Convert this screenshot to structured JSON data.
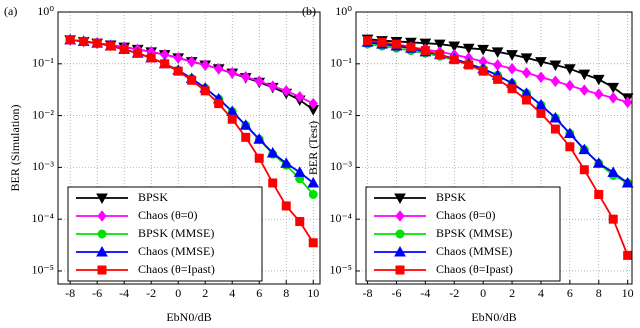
{
  "chart_data": [
    {
      "type": "line",
      "panel_label": "(a)",
      "xlabel": "EbN0/dB",
      "ylabel": "BER (Simulation)",
      "yscale": "log",
      "grid": true,
      "legend": "lower left",
      "x": [
        -8,
        -7,
        -6,
        -5,
        -4,
        -3,
        -2,
        -1,
        0,
        1,
        2,
        3,
        4,
        5,
        6,
        7,
        8,
        9,
        10
      ],
      "xlim": [
        -8.9,
        10.5
      ],
      "xticks": [
        -8,
        -6,
        -4,
        -2,
        0,
        2,
        4,
        6,
        8,
        10
      ],
      "ylim": [
        5.6e-06,
        1
      ],
      "yticks": [
        {
          "value": 1e-05,
          "label": "10⁻⁵"
        },
        {
          "value": 0.0001,
          "label": "10⁻⁴"
        },
        {
          "value": 0.001,
          "label": "10⁻³"
        },
        {
          "value": 0.01,
          "label": "10⁻²"
        },
        {
          "value": 0.1,
          "label": "10⁻¹"
        },
        {
          "value": 1,
          "label": "10⁰"
        }
      ],
      "series": [
        {
          "name": "BPSK",
          "color": "#000000",
          "marker": "triangle-down",
          "values": [
            0.29,
            0.27,
            0.25,
            0.23,
            0.21,
            0.19,
            0.17,
            0.15,
            0.13,
            0.11,
            0.095,
            0.08,
            0.066,
            0.054,
            0.044,
            0.035,
            0.027,
            0.02,
            0.013
          ]
        },
        {
          "name": "Chaos (θ=0)",
          "color": "#ff00ff",
          "marker": "diamond",
          "values": [
            0.29,
            0.27,
            0.25,
            0.23,
            0.21,
            0.19,
            0.17,
            0.15,
            0.13,
            0.11,
            0.095,
            0.08,
            0.067,
            0.056,
            0.046,
            0.037,
            0.03,
            0.023,
            0.017
          ]
        },
        {
          "name": "BPSK (MMSE)",
          "color": "#00e000",
          "marker": "circle",
          "values": [
            0.29,
            0.27,
            0.25,
            0.22,
            0.19,
            0.16,
            0.13,
            0.1,
            0.075,
            0.052,
            0.034,
            0.021,
            0.012,
            0.0065,
            0.0035,
            0.0018,
            0.0011,
            0.0006,
            0.0003
          ]
        },
        {
          "name": "Chaos (MMSE)",
          "color": "#0000ff",
          "marker": "triangle-up",
          "values": [
            0.29,
            0.27,
            0.25,
            0.22,
            0.19,
            0.16,
            0.13,
            0.1,
            0.075,
            0.052,
            0.034,
            0.021,
            0.012,
            0.0065,
            0.0035,
            0.0019,
            0.0012,
            0.0008,
            0.0005
          ]
        },
        {
          "name": "Chaos (θ=Ipast)",
          "color": "#ff0000",
          "marker": "square",
          "values": [
            0.29,
            0.27,
            0.25,
            0.22,
            0.19,
            0.16,
            0.13,
            0.1,
            0.072,
            0.048,
            0.03,
            0.017,
            0.0085,
            0.0038,
            0.0015,
            0.0005,
            0.00018,
            9e-05,
            3.5e-05
          ]
        }
      ]
    },
    {
      "type": "line",
      "panel_label": "(b)",
      "xlabel": "EbN0/dB",
      "ylabel": "BER (Test)",
      "yscale": "log",
      "grid": true,
      "legend": "lower left",
      "x": [
        -8,
        -7,
        -6,
        -5,
        -4,
        -3,
        -2,
        -1,
        0,
        1,
        2,
        3,
        4,
        5,
        6,
        7,
        8,
        9,
        10
      ],
      "xlim": [
        -8.8,
        10.3
      ],
      "xticks": [
        -8,
        -6,
        -4,
        -2,
        0,
        2,
        4,
        6,
        8,
        10
      ],
      "ylim": [
        5.6e-06,
        1
      ],
      "yticks": [
        {
          "value": 1e-05,
          "label": "10⁻⁵"
        },
        {
          "value": 0.0001,
          "label": "10⁻⁴"
        },
        {
          "value": 0.001,
          "label": "10⁻³"
        },
        {
          "value": 0.01,
          "label": "10⁻²"
        },
        {
          "value": 0.1,
          "label": "10⁻¹"
        },
        {
          "value": 1,
          "label": "10⁰"
        }
      ],
      "series": [
        {
          "name": "BPSK",
          "color": "#000000",
          "marker": "triangle-down",
          "values": [
            0.3,
            0.28,
            0.27,
            0.26,
            0.25,
            0.24,
            0.22,
            0.2,
            0.19,
            0.17,
            0.15,
            0.13,
            0.11,
            0.095,
            0.08,
            0.063,
            0.05,
            0.035,
            0.022
          ]
        },
        {
          "name": "Chaos (θ=0)",
          "color": "#ff00ff",
          "marker": "diamond",
          "values": [
            0.27,
            0.25,
            0.23,
            0.21,
            0.19,
            0.17,
            0.15,
            0.13,
            0.11,
            0.095,
            0.08,
            0.067,
            0.055,
            0.046,
            0.038,
            0.031,
            0.026,
            0.022,
            0.018
          ]
        },
        {
          "name": "BPSK (MMSE)",
          "color": "#00e000",
          "marker": "circle",
          "values": [
            0.24,
            0.22,
            0.2,
            0.18,
            0.16,
            0.14,
            0.12,
            0.1,
            0.08,
            0.06,
            0.042,
            0.027,
            0.016,
            0.009,
            0.0045,
            0.0022,
            0.0012,
            0.0007,
            0.0005
          ]
        },
        {
          "name": "Chaos (MMSE)",
          "color": "#0000ff",
          "marker": "triangle-up",
          "values": [
            0.26,
            0.24,
            0.22,
            0.2,
            0.17,
            0.15,
            0.125,
            0.1,
            0.08,
            0.06,
            0.042,
            0.027,
            0.016,
            0.009,
            0.0045,
            0.0022,
            0.0012,
            0.0008,
            0.0005
          ]
        },
        {
          "name": "Chaos (θ=Ipast)",
          "color": "#ff0000",
          "marker": "square",
          "values": [
            0.28,
            0.26,
            0.24,
            0.21,
            0.18,
            0.15,
            0.12,
            0.095,
            0.072,
            0.05,
            0.033,
            0.02,
            0.011,
            0.0055,
            0.0025,
            0.0009,
            0.0003,
            0.0001,
            2e-05
          ]
        }
      ]
    }
  ]
}
